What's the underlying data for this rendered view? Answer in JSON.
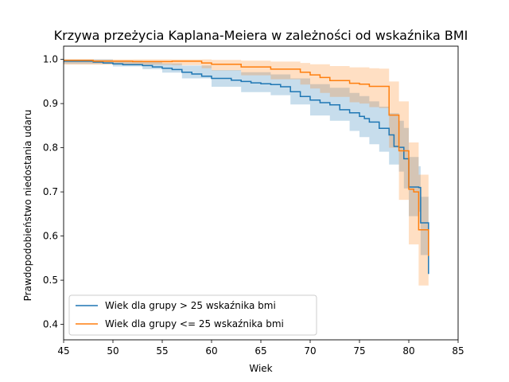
{
  "chart_data": {
    "type": "line",
    "title": "Krzywa przeżycia Kaplana-Meiera w zależności od wskaźnika BMI",
    "xlabel": "Wiek",
    "ylabel": "Prawdopodobieństwo niedostania udaru",
    "xlim": [
      45,
      85
    ],
    "ylim": [
      0.365,
      1.03
    ],
    "x_ticks": [
      "45",
      "50",
      "55",
      "60",
      "65",
      "70",
      "75",
      "80",
      "85"
    ],
    "y_ticks": [
      "0.4",
      "0.5",
      "0.6",
      "0.7",
      "0.8",
      "0.9",
      "1.0"
    ],
    "grid": false,
    "legend_position": "lower-left",
    "curve_style": "step-post with shaded confidence band",
    "series": [
      {
        "name": "Wiek dla grupy > 25 wskaźnika bmi",
        "color": "#1f77b4",
        "points": [
          [
            45,
            0.996
          ],
          [
            48,
            0.994
          ],
          [
            49,
            0.992
          ],
          [
            50,
            0.99
          ],
          [
            51,
            0.988
          ],
          [
            53,
            0.986
          ],
          [
            54,
            0.983
          ],
          [
            55,
            0.98
          ],
          [
            56,
            0.977
          ],
          [
            57,
            0.971
          ],
          [
            58,
            0.967
          ],
          [
            59,
            0.962
          ],
          [
            60,
            0.957
          ],
          [
            62,
            0.953
          ],
          [
            63,
            0.95
          ],
          [
            64,
            0.947
          ],
          [
            65,
            0.945
          ],
          [
            66,
            0.943
          ],
          [
            67,
            0.938
          ],
          [
            68,
            0.927
          ],
          [
            69,
            0.916
          ],
          [
            70,
            0.908
          ],
          [
            71,
            0.902
          ],
          [
            72,
            0.897
          ],
          [
            73,
            0.886
          ],
          [
            74,
            0.879
          ],
          [
            75,
            0.871
          ],
          [
            75.5,
            0.866
          ],
          [
            76,
            0.858
          ],
          [
            77,
            0.844
          ],
          [
            78,
            0.829
          ],
          [
            78.5,
            0.803
          ],
          [
            79,
            0.801
          ],
          [
            79.5,
            0.775
          ],
          [
            80,
            0.711
          ],
          [
            81,
            0.71
          ],
          [
            81.2,
            0.63
          ],
          [
            82,
            0.63
          ],
          [
            82,
            0.514
          ],
          [
            82,
            0.541
          ]
        ],
        "upper": [
          [
            45,
            1.0
          ],
          [
            50,
            0.997
          ],
          [
            53,
            0.995
          ],
          [
            55,
            0.991
          ],
          [
            57,
            0.986
          ],
          [
            60,
            0.976
          ],
          [
            63,
            0.971
          ],
          [
            66,
            0.966
          ],
          [
            68,
            0.957
          ],
          [
            70,
            0.944
          ],
          [
            72,
            0.936
          ],
          [
            74,
            0.924
          ],
          [
            75,
            0.917
          ],
          [
            76,
            0.905
          ],
          [
            77,
            0.893
          ],
          [
            78,
            0.878
          ],
          [
            79,
            0.861
          ],
          [
            79.5,
            0.845
          ],
          [
            80,
            0.779
          ],
          [
            81,
            0.758
          ],
          [
            81.2,
            0.689
          ],
          [
            82,
            0.689
          ]
        ],
        "lower": [
          [
            45,
            0.99
          ],
          [
            50,
            0.984
          ],
          [
            53,
            0.978
          ],
          [
            55,
            0.97
          ],
          [
            57,
            0.957
          ],
          [
            60,
            0.938
          ],
          [
            63,
            0.926
          ],
          [
            66,
            0.919
          ],
          [
            68,
            0.898
          ],
          [
            70,
            0.873
          ],
          [
            72,
            0.861
          ],
          [
            74,
            0.838
          ],
          [
            75,
            0.824
          ],
          [
            76,
            0.808
          ],
          [
            77,
            0.791
          ],
          [
            78,
            0.762
          ],
          [
            79,
            0.746
          ],
          [
            79.5,
            0.708
          ],
          [
            80,
            0.645
          ],
          [
            81,
            0.655
          ],
          [
            81.2,
            0.557
          ],
          [
            82,
            0.4
          ]
        ]
      },
      {
        "name": "Wiek dla grupy <= 25 wskaźnika bmi",
        "color": "#ff7f0e",
        "points": [
          [
            45,
            0.998
          ],
          [
            48,
            0.996
          ],
          [
            50,
            0.996
          ],
          [
            52,
            0.995
          ],
          [
            56,
            0.996
          ],
          [
            59,
            0.992
          ],
          [
            60,
            0.989
          ],
          [
            63,
            0.983
          ],
          [
            66,
            0.978
          ],
          [
            69,
            0.971
          ],
          [
            70,
            0.965
          ],
          [
            71,
            0.959
          ],
          [
            72,
            0.952
          ],
          [
            73,
            0.952
          ],
          [
            74,
            0.946
          ],
          [
            75,
            0.944
          ],
          [
            76,
            0.939
          ],
          [
            77,
            0.939
          ],
          [
            78,
            0.874
          ],
          [
            79,
            0.793
          ],
          [
            79.5,
            0.793
          ],
          [
            80,
            0.706
          ],
          [
            80.5,
            0.7
          ],
          [
            81,
            0.614
          ],
          [
            82,
            0.614
          ],
          [
            82,
            0.555
          ]
        ],
        "upper": [
          [
            45,
            1.0
          ],
          [
            59,
            1.0
          ],
          [
            60,
            0.999
          ],
          [
            63,
            0.997
          ],
          [
            66,
            0.995
          ],
          [
            69,
            0.992
          ],
          [
            70,
            0.989
          ],
          [
            72,
            0.985
          ],
          [
            74,
            0.982
          ],
          [
            76,
            0.98
          ],
          [
            77,
            0.979
          ],
          [
            78,
            0.95
          ],
          [
            79,
            0.905
          ],
          [
            80,
            0.812
          ],
          [
            81,
            0.739
          ],
          [
            82,
            0.739
          ]
        ],
        "lower": [
          [
            45,
            0.988
          ],
          [
            52,
            0.988
          ],
          [
            56,
            0.987
          ],
          [
            59,
            0.98
          ],
          [
            60,
            0.975
          ],
          [
            63,
            0.964
          ],
          [
            66,
            0.955
          ],
          [
            69,
            0.943
          ],
          [
            70,
            0.934
          ],
          [
            71,
            0.924
          ],
          [
            72,
            0.915
          ],
          [
            74,
            0.903
          ],
          [
            75,
            0.9
          ],
          [
            76,
            0.892
          ],
          [
            77,
            0.89
          ],
          [
            78,
            0.8
          ],
          [
            79,
            0.682
          ],
          [
            80,
            0.581
          ],
          [
            81,
            0.488
          ],
          [
            82,
            0.392
          ]
        ]
      }
    ]
  }
}
